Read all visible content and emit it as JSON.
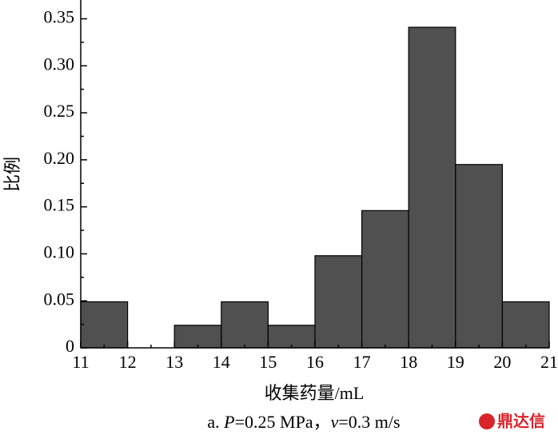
{
  "chart_data": {
    "type": "histogram",
    "bins": [
      11,
      12,
      13,
      14,
      15,
      16,
      17,
      18,
      19,
      20,
      21
    ],
    "values": [
      0.049,
      0,
      0.024,
      0.049,
      0.024,
      0.098,
      0.146,
      0.341,
      0.195,
      0.049
    ],
    "color": "#505050",
    "xlim": [
      11,
      21
    ],
    "xticks": [
      11,
      12,
      13,
      14,
      15,
      16,
      17,
      18,
      19,
      20,
      21
    ],
    "ylim": [
      0,
      0.37
    ],
    "yticks": [
      0,
      0.05,
      {
        "value": 0.1,
        "label": "0.10"
      },
      0.15,
      {
        "value": 0.2,
        "label": "0.20"
      },
      0.25,
      {
        "value": 0.3,
        "label": "0.30"
      },
      0.35
    ],
    "ylabel": "比例",
    "xlabel": "收集药量/mL",
    "caption": [
      "a. ",
      "P",
      "=0.25 MPa，",
      "v",
      "=0.3 m/s"
    ],
    "watermark": "鼎达信"
  }
}
